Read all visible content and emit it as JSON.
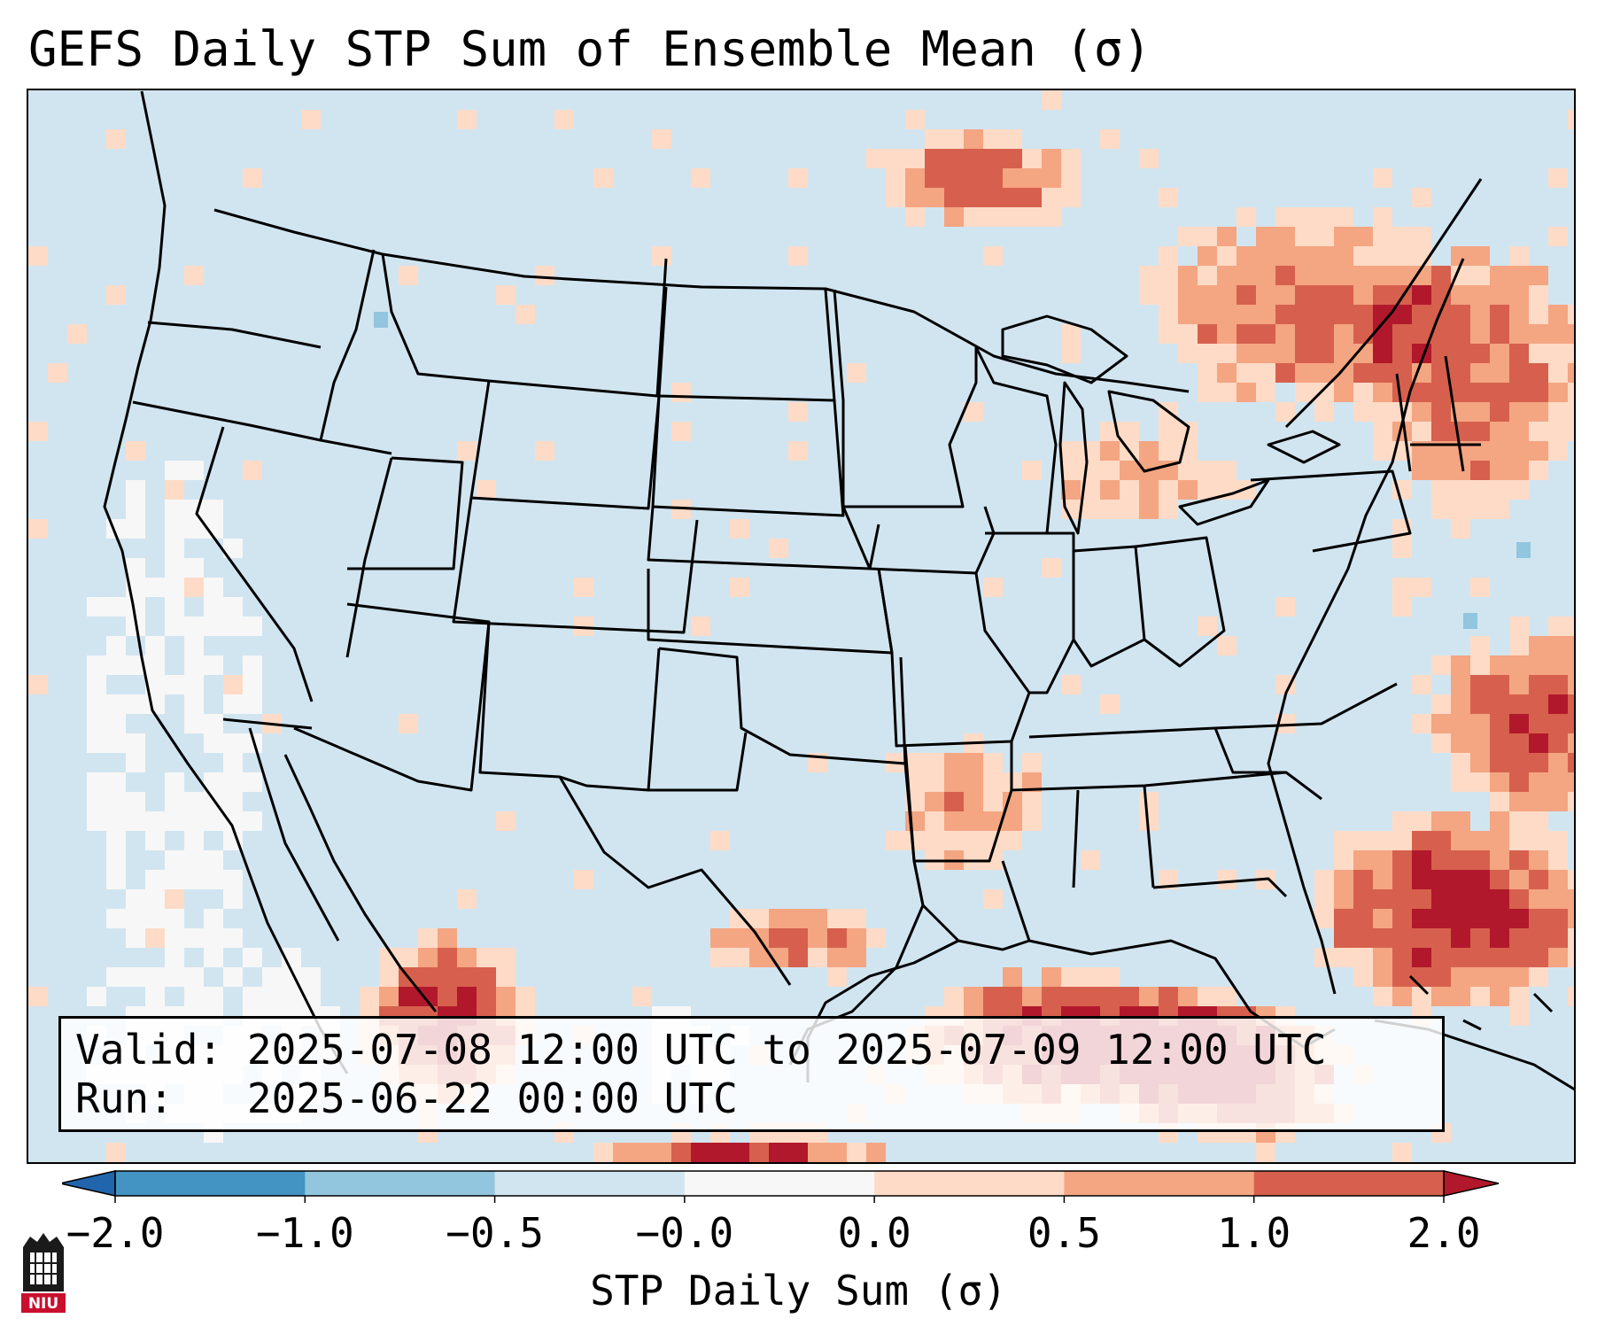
{
  "title": "GEFS Daily STP Sum of Ensemble Mean (σ)",
  "info": {
    "valid_label": "Valid:",
    "valid_value": "2025-07-08 12:00 UTC to 2025-07-09 12:00 UTC",
    "run_label": "Run:",
    "run_value": "2025-06-22 00:00 UTC"
  },
  "colorbar": {
    "label": "STP Daily Sum (σ)",
    "ticks": [
      "−2.0",
      "−1.0",
      "−0.5",
      "−0.0",
      "0.0",
      "0.5",
      "1.0",
      "2.0"
    ],
    "bin_colors": [
      "#4393c3",
      "#92c5de",
      "#d1e5f0",
      "#f7f7f7",
      "#fddbc7",
      "#f4a582",
      "#d6604d"
    ],
    "under_color": "#2166ac",
    "over_color": "#b2182b"
  },
  "colors": {
    "ocean_background": "#d1e5f0",
    "neutral_near_zero": "#f7f7f7",
    "slight_positive": "#fddbc7",
    "moderate_positive": "#f4a582",
    "strong_positive": "#d6604d",
    "very_strong_positive": "#b2182b",
    "slight_negative": "#92c5de",
    "boundary_lines": "#000000"
  },
  "map": {
    "region": "Contiguous United States, southern Canada, northern Mexico, Gulf of Mexico, western Atlantic",
    "field": "GEFS ensemble mean daily STP sum standardized anomaly",
    "legend_icon": "niu-logo-icon",
    "logo_text": "NIU"
  }
}
